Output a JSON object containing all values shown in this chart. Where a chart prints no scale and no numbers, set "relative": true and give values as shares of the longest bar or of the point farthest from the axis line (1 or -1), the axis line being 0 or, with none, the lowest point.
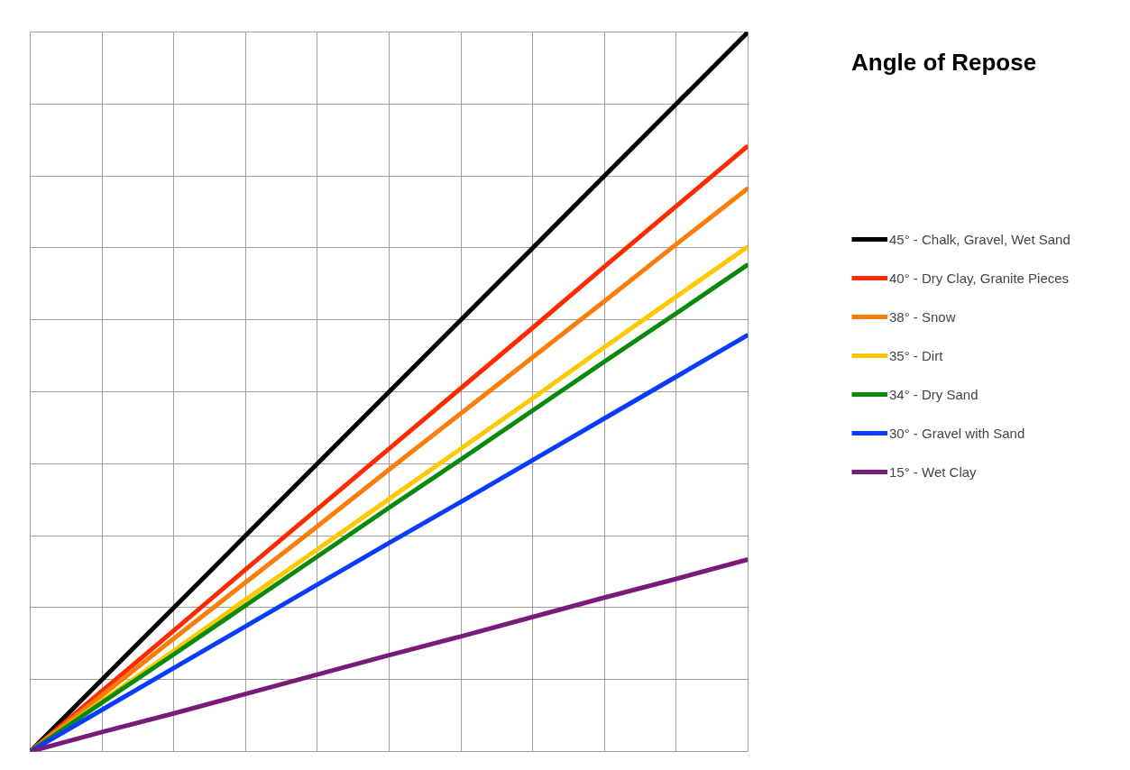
{
  "chart_data": {
    "type": "line",
    "title": "Angle of Repose",
    "relative": true,
    "grid": true,
    "legend": "right",
    "categories": [
      null,
      null,
      null,
      null,
      null,
      null,
      null,
      null,
      null,
      null,
      null
    ],
    "series": [
      {
        "name": "45° - Chalk, Gravel, Wet Sand",
        "color": "#000000",
        "values": [
          0,
          0.1,
          0.2,
          0.3,
          0.4,
          0.5,
          0.6,
          0.7,
          0.8,
          0.9,
          1
        ]
      },
      {
        "name": "40° - Dry Clay, Granite Pieces",
        "color": "#ff2a00",
        "values": [
          0,
          0.084,
          0.168,
          0.253,
          0.337,
          0.421,
          0.505,
          0.589,
          0.674,
          0.758,
          0.842
        ]
      },
      {
        "name": "38° - Snow",
        "color": "#fa7d0a",
        "values": [
          0,
          0.078,
          0.157,
          0.235,
          0.313,
          0.392,
          0.47,
          0.548,
          0.626,
          0.705,
          0.783
        ]
      },
      {
        "name": "35° - Dirt",
        "color": "#ffc800",
        "values": [
          0,
          0.07,
          0.14,
          0.211,
          0.281,
          0.351,
          0.421,
          0.491,
          0.562,
          0.632,
          0.702
        ]
      },
      {
        "name": "34° - Dry Sand",
        "color": "#0a8a0a",
        "values": [
          0,
          0.068,
          0.135,
          0.203,
          0.271,
          0.339,
          0.406,
          0.474,
          0.542,
          0.609,
          0.677
        ]
      },
      {
        "name": "30° - Gravel with Sand",
        "color": "#0a3cff",
        "values": [
          0,
          0.058,
          0.116,
          0.174,
          0.232,
          0.29,
          0.347,
          0.405,
          0.463,
          0.521,
          0.579
        ]
      },
      {
        "name": "15° - Wet Clay",
        "color": "#7a1a7a",
        "values": [
          0,
          0.027,
          0.053,
          0.08,
          0.107,
          0.134,
          0.16,
          0.187,
          0.214,
          0.24,
          0.267
        ]
      }
    ]
  }
}
